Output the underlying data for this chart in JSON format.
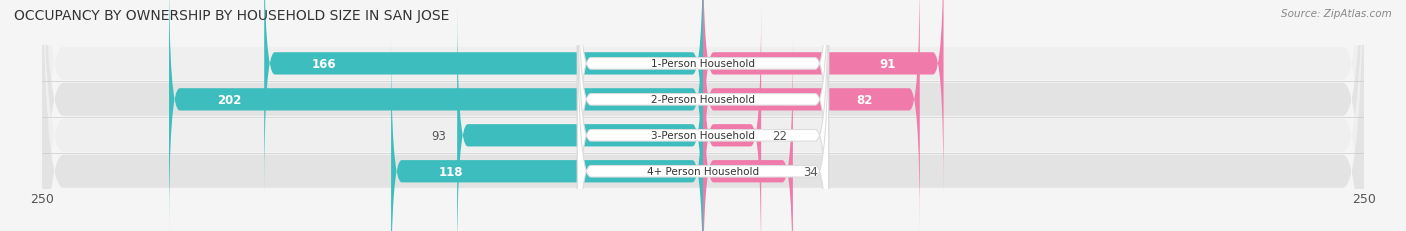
{
  "title": "OCCUPANCY BY OWNERSHIP BY HOUSEHOLD SIZE IN SAN JOSE",
  "source": "Source: ZipAtlas.com",
  "categories": [
    "1-Person Household",
    "2-Person Household",
    "3-Person Household",
    "4+ Person Household"
  ],
  "owner_values": [
    166,
    202,
    93,
    118
  ],
  "renter_values": [
    91,
    82,
    22,
    34
  ],
  "max_value": 250,
  "owner_color": "#3dbdbd",
  "renter_color": "#f07aaa",
  "row_bg_even": "#efefef",
  "row_bg_odd": "#e3e3e3",
  "title_fontsize": 10,
  "tick_fontsize": 9,
  "bar_height": 0.62,
  "figsize": [
    14.06,
    2.32
  ],
  "dpi": 100
}
